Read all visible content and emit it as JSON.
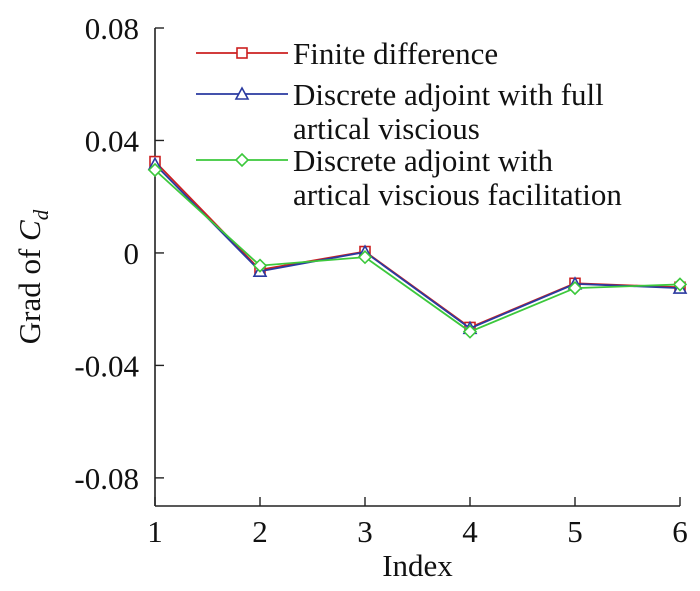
{
  "chart_data": {
    "type": "line",
    "xlabel": "Index",
    "ylabel_prefix": "Grad of ",
    "ylabel_symbol": "C",
    "ylabel_subscript": "d",
    "x": [
      1,
      2,
      3,
      4,
      5,
      6
    ],
    "xlim": [
      1,
      6
    ],
    "ylim": [
      -0.09,
      0.08
    ],
    "xticks": [
      "1",
      "2",
      "3",
      "4",
      "5",
      "6"
    ],
    "yticks": [
      {
        "value": 0.08,
        "label": "0.08"
      },
      {
        "value": 0.04,
        "label": "0.04"
      },
      {
        "value": 0.0,
        "label": "0"
      },
      {
        "value": -0.04,
        "label": "-0.04"
      },
      {
        "value": -0.08,
        "label": "-0.08"
      }
    ],
    "grid": false,
    "legend_position": "top-right",
    "series": [
      {
        "name": "Finite difference",
        "color": "#cc2020",
        "marker": "square",
        "values": [
          0.0325,
          -0.006,
          0.0005,
          -0.0265,
          -0.0108,
          -0.0122
        ]
      },
      {
        "name": "Discrete adjoint with full artical viscious",
        "legend_lines": [
          "Discrete adjoint with full",
          "artical viscious"
        ],
        "color": "#2a3aa0",
        "marker": "triangle",
        "values": [
          0.0315,
          -0.0065,
          0.0003,
          -0.0268,
          -0.011,
          -0.0125
        ]
      },
      {
        "name": "Discrete adjoint with artical viscious facilitation",
        "legend_lines": [
          "Discrete adjoint with",
          "artical viscious facilitation"
        ],
        "color": "#3cc83c",
        "marker": "diamond",
        "values": [
          0.0295,
          -0.0045,
          -0.0015,
          -0.028,
          -0.0125,
          -0.0112
        ]
      }
    ]
  }
}
